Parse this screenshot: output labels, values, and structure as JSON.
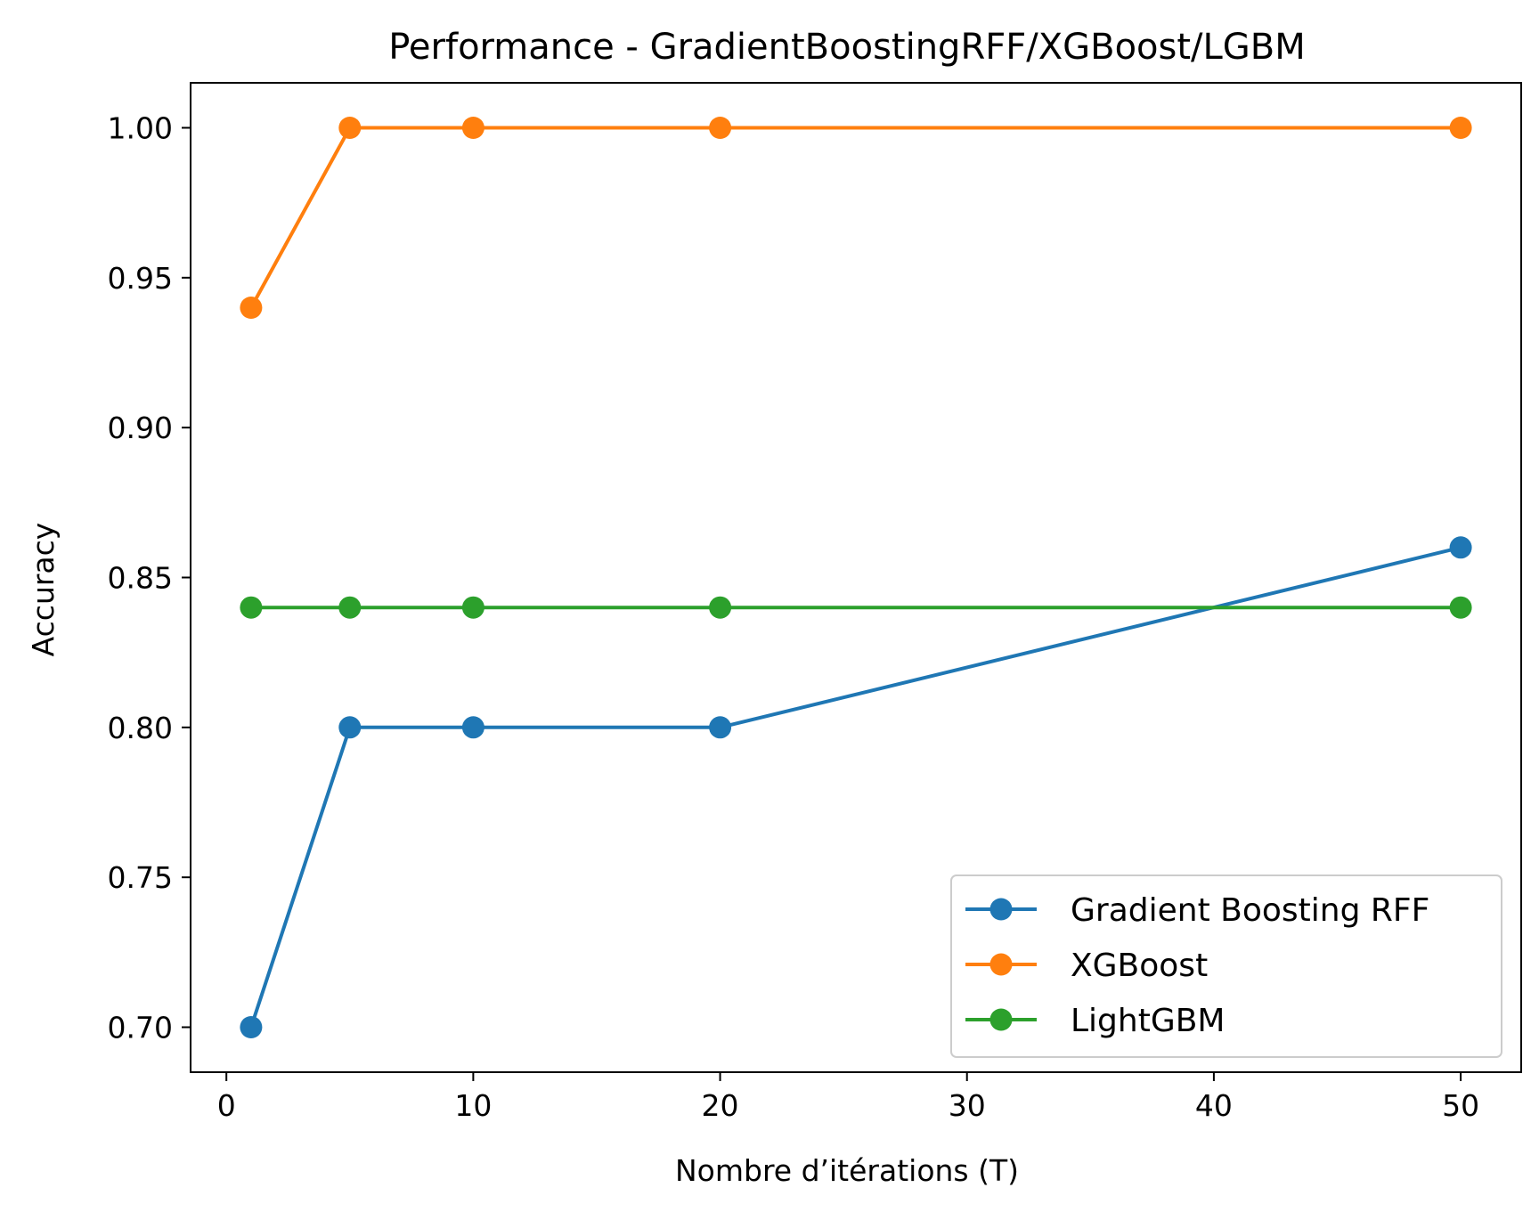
{
  "chart_data": {
    "type": "line",
    "title": "Performance - GradientBoostingRFF/XGBoost/LGBM",
    "xlabel": "Nombre d’itérations (T)",
    "ylabel": "Accuracy",
    "xlim": [
      -1.45,
      52.45
    ],
    "ylim": [
      0.685,
      1.015
    ],
    "xticks": [
      0,
      10,
      20,
      30,
      40,
      50
    ],
    "xtick_labels": [
      "0",
      "10",
      "20",
      "30",
      "40",
      "50"
    ],
    "yticks": [
      0.7,
      0.75,
      0.8,
      0.85,
      0.9,
      0.95,
      1.0
    ],
    "ytick_labels": [
      "0.70",
      "0.75",
      "0.80",
      "0.85",
      "0.90",
      "0.95",
      "1.00"
    ],
    "grid": false,
    "legend_position": "lower-right",
    "x": [
      1,
      5,
      10,
      20,
      50
    ],
    "series": [
      {
        "name": "Gradient Boosting RFF",
        "values": [
          0.7,
          0.8,
          0.8,
          0.8,
          0.86
        ],
        "color": "#1f77b4"
      },
      {
        "name": "XGBoost",
        "values": [
          0.94,
          1.0,
          1.0,
          1.0,
          1.0
        ],
        "color": "#ff7f0e"
      },
      {
        "name": "LightGBM",
        "values": [
          0.84,
          0.84,
          0.84,
          0.84,
          0.84
        ],
        "color": "#2ca02c"
      }
    ]
  }
}
